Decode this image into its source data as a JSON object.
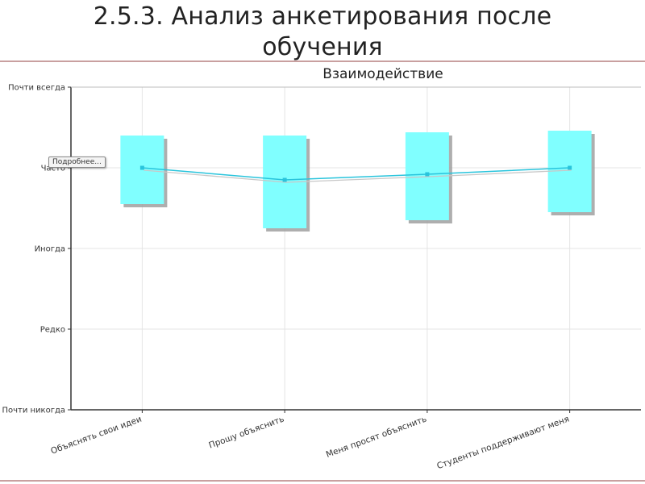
{
  "slide": {
    "title": "2.5.3. Анализ анкетирования после обучения"
  },
  "tooltip": {
    "label": "Подробнее..."
  },
  "chart_data": {
    "type": "box",
    "title": "Взаимодействие",
    "categories": [
      "Объяснять свои идеи",
      "Прошу объяснить",
      "Меня просят объяснить",
      "Студенты поддерживают меня"
    ],
    "y_levels": [
      "Почти никогда",
      "Редко",
      "Иногда",
      "Часто",
      "Почти всегда"
    ],
    "ylim": [
      0,
      4
    ],
    "series": [
      {
        "values": [
          3.0,
          2.85,
          2.92,
          3.0
        ],
        "box_low": [
          2.55,
          2.25,
          2.35,
          2.45
        ],
        "box_high": [
          3.4,
          3.4,
          3.44,
          3.46
        ]
      }
    ],
    "colors": {
      "box_fill": "#80ffff",
      "box_shadow": "#9a9a9a",
      "line": "#29c4dc",
      "grid": "#e4e4e4",
      "axis": "#333333"
    },
    "grid": true
  }
}
